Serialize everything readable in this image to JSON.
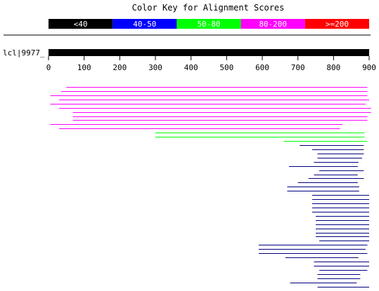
{
  "title": "Color Key for Alignment Scores",
  "legend": {
    "items": [
      {
        "label": "<40",
        "color": "#000000"
      },
      {
        "label": "40-50",
        "color": "#0000ff"
      },
      {
        "label": "50-80",
        "color": "#00ff00"
      },
      {
        "label": "80-200",
        "color": "#ff00ff"
      },
      {
        "label": ">=200",
        "color": "#ff0000"
      }
    ]
  },
  "query": {
    "label": "lcl|9977_",
    "bar_color": "#000000"
  },
  "chart_data": {
    "type": "alignment_overview",
    "xlim": [
      0,
      900
    ],
    "xticks": [
      0,
      100,
      200,
      300,
      400,
      500,
      600,
      700,
      800,
      900
    ],
    "xticklabels": [
      "0",
      "100",
      "200",
      "300",
      "400",
      "500",
      "600",
      "700",
      "800",
      "900"
    ],
    "hits": [
      {
        "start": 50,
        "end": 895,
        "color": "#ff00ff"
      },
      {
        "start": 35,
        "end": 895,
        "color": "#ff00ff"
      },
      {
        "start": 5,
        "end": 895,
        "color": "#ff00ff"
      },
      {
        "start": 30,
        "end": 900,
        "color": "#ff00ff"
      },
      {
        "start": 5,
        "end": 890,
        "color": "#ff00ff"
      },
      {
        "start": 30,
        "end": 905,
        "color": "#ff00ff"
      },
      {
        "start": 68,
        "end": 905,
        "color": "#ff00ff"
      },
      {
        "start": 68,
        "end": 895,
        "color": "#ff00ff"
      },
      {
        "start": 68,
        "end": 895,
        "color": "#ff00ff"
      },
      {
        "start": 5,
        "end": 825,
        "color": "#ff00ff"
      },
      {
        "start": 30,
        "end": 818,
        "color": "#ff00ff"
      },
      {
        "start": 300,
        "end": 887,
        "color": "#00ff00"
      },
      {
        "start": 300,
        "end": 887,
        "color": "#00ff00"
      },
      {
        "start": 660,
        "end": 895,
        "color": "#00ff00"
      },
      {
        "start": 705,
        "end": 885,
        "color": "#000080"
      },
      {
        "start": 740,
        "end": 885,
        "color": "#000080"
      },
      {
        "start": 755,
        "end": 885,
        "color": "#000080"
      },
      {
        "start": 755,
        "end": 880,
        "color": "#000080"
      },
      {
        "start": 745,
        "end": 870,
        "color": "#000080"
      },
      {
        "start": 675,
        "end": 868,
        "color": "#000080"
      },
      {
        "start": 760,
        "end": 885,
        "color": "#000080"
      },
      {
        "start": 745,
        "end": 868,
        "color": "#000080"
      },
      {
        "start": 730,
        "end": 885,
        "color": "#000080"
      },
      {
        "start": 700,
        "end": 868,
        "color": "#000080"
      },
      {
        "start": 670,
        "end": 872,
        "color": "#000080"
      },
      {
        "start": 670,
        "end": 872,
        "color": "#000080"
      },
      {
        "start": 740,
        "end": 900,
        "color": "#000080"
      },
      {
        "start": 740,
        "end": 900,
        "color": "#000080"
      },
      {
        "start": 740,
        "end": 900,
        "color": "#000080"
      },
      {
        "start": 740,
        "end": 900,
        "color": "#000080"
      },
      {
        "start": 740,
        "end": 900,
        "color": "#000080"
      },
      {
        "start": 750,
        "end": 900,
        "color": "#000080"
      },
      {
        "start": 750,
        "end": 900,
        "color": "#000080"
      },
      {
        "start": 750,
        "end": 900,
        "color": "#000080"
      },
      {
        "start": 750,
        "end": 900,
        "color": "#000080"
      },
      {
        "start": 750,
        "end": 900,
        "color": "#000080"
      },
      {
        "start": 750,
        "end": 900,
        "color": "#000080"
      },
      {
        "start": 760,
        "end": 900,
        "color": "#000080"
      },
      {
        "start": 590,
        "end": 895,
        "color": "#000080"
      },
      {
        "start": 590,
        "end": 890,
        "color": "#000080"
      },
      {
        "start": 590,
        "end": 895,
        "color": "#000080"
      },
      {
        "start": 665,
        "end": 870,
        "color": "#000080"
      },
      {
        "start": 745,
        "end": 900,
        "color": "#000080"
      },
      {
        "start": 745,
        "end": 900,
        "color": "#000080"
      },
      {
        "start": 760,
        "end": 895,
        "color": "#000080"
      },
      {
        "start": 755,
        "end": 875,
        "color": "#000080"
      },
      {
        "start": 755,
        "end": 875,
        "color": "#000080"
      },
      {
        "start": 678,
        "end": 865,
        "color": "#000080"
      },
      {
        "start": 755,
        "end": 900,
        "color": "#000080"
      },
      {
        "start": 760,
        "end": 862,
        "color": "#000080"
      }
    ]
  }
}
